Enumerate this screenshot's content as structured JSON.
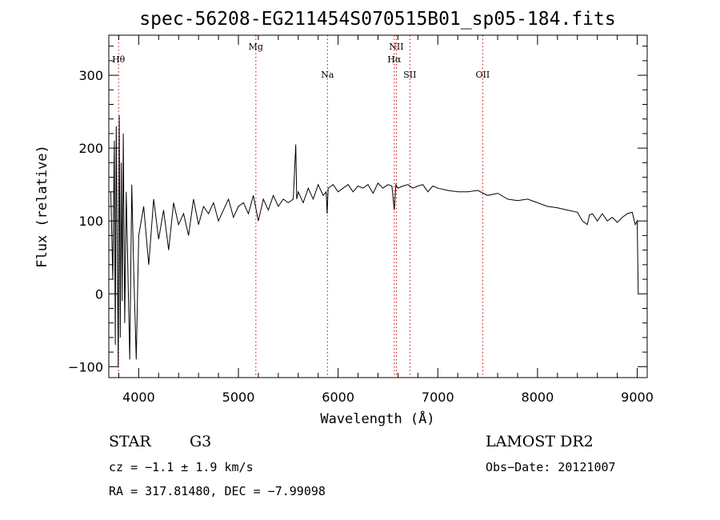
{
  "chart_data": {
    "type": "line",
    "title": "spec-56208-EG211454S070515B01_sp05-184.fits",
    "xlabel": "Wavelength (Å)",
    "ylabel": "Flux (relative)",
    "xlim": [
      3700,
      9100
    ],
    "ylim": [
      -115,
      355
    ],
    "xticks": [
      4000,
      5000,
      6000,
      7000,
      8000,
      9000
    ],
    "yticks": [
      -100,
      0,
      100,
      200,
      300
    ],
    "grid": false,
    "series": [
      {
        "x": [
          3720,
          3740,
          3755,
          3765,
          3775,
          3785,
          3795,
          3805,
          3815,
          3825,
          3835,
          3845,
          3860,
          3875,
          3890,
          3910,
          3930,
          3950,
          3975,
          4000,
          4050,
          4100,
          4150,
          4200,
          4250,
          4300,
          4350,
          4400,
          4450,
          4500,
          4550,
          4600,
          4650,
          4700,
          4750,
          4800,
          4850,
          4900,
          4950,
          5000,
          5050,
          5100,
          5150,
          5200,
          5250,
          5300,
          5350,
          5400,
          5450,
          5500,
          5550,
          5575,
          5585,
          5600,
          5650,
          5700,
          5750,
          5800,
          5850,
          5880,
          5890,
          5900,
          5950,
          6000,
          6050,
          6100,
          6150,
          6200,
          6250,
          6300,
          6350,
          6400,
          6450,
          6500,
          6540,
          6563,
          6580,
          6600,
          6650,
          6700,
          6750,
          6800,
          6850,
          6900,
          6950,
          7000,
          7100,
          7200,
          7300,
          7400,
          7500,
          7600,
          7700,
          7800,
          7900,
          8000,
          8100,
          8200,
          8300,
          8400,
          8450,
          8500,
          8520,
          8550,
          8600,
          8650,
          8700,
          8750,
          8800,
          8850,
          8900,
          8950,
          8980,
          9000,
          9010
        ],
        "values": [
          140,
          20,
          210,
          -70,
          230,
          60,
          -100,
          245,
          -60,
          180,
          -10,
          220,
          -40,
          140,
          40,
          -90,
          150,
          30,
          -90,
          80,
          120,
          40,
          130,
          75,
          115,
          60,
          125,
          95,
          110,
          80,
          130,
          95,
          120,
          110,
          125,
          100,
          115,
          130,
          105,
          120,
          125,
          110,
          135,
          100,
          130,
          115,
          135,
          120,
          130,
          125,
          130,
          205,
          130,
          140,
          125,
          145,
          130,
          150,
          135,
          140,
          110,
          145,
          150,
          140,
          145,
          150,
          140,
          148,
          145,
          150,
          138,
          152,
          145,
          150,
          148,
          115,
          150,
          145,
          148,
          150,
          145,
          148,
          150,
          140,
          148,
          145,
          142,
          140,
          140,
          142,
          135,
          138,
          130,
          128,
          130,
          125,
          120,
          118,
          115,
          112,
          100,
          95,
          108,
          110,
          100,
          110,
          100,
          105,
          98,
          105,
          110,
          112,
          95,
          100,
          0
        ]
      }
    ],
    "lines": [
      {
        "label": "Hθ",
        "x": 3798
      },
      {
        "label": "Mg",
        "x": 5175
      },
      {
        "label": "Na",
        "x": 5893
      },
      {
        "label": "NII",
        "x": 6584
      },
      {
        "label": "Hα",
        "x": 6563
      },
      {
        "label": "SII",
        "x": 6720
      },
      {
        "label": "OII",
        "x": 7450
      }
    ]
  },
  "info": {
    "object_type": "STAR",
    "subclass": "G3",
    "survey": "LAMOST DR2",
    "redshift": "cz = −1.1 ± 1.9 km/s",
    "obs_date": "Obs−Date: 20121007",
    "coords": "RA = 317.81480, DEC =  −7.99098"
  }
}
